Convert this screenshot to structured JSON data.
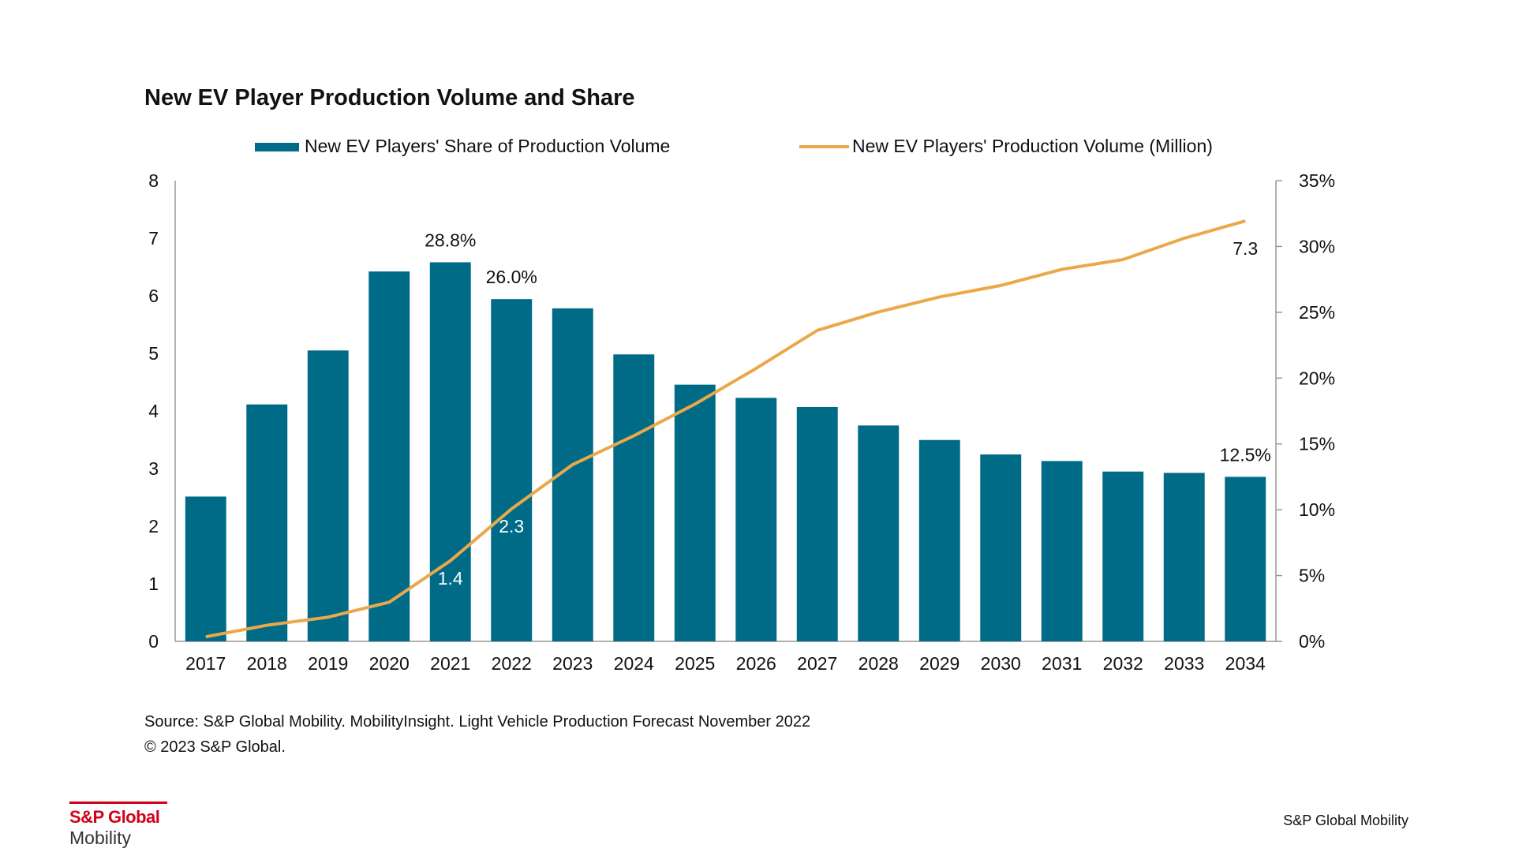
{
  "chart_data": {
    "type": "bar",
    "title": "New EV Player Production Volume and Share",
    "categories": [
      "2017",
      "2018",
      "2019",
      "2020",
      "2021",
      "2022",
      "2023",
      "2024",
      "2025",
      "2026",
      "2027",
      "2028",
      "2029",
      "2030",
      "2031",
      "2032",
      "2033",
      "2034"
    ],
    "series": [
      {
        "name": "New EV Players' Share of Production Volume",
        "type": "bar",
        "axis": "right",
        "values": [
          11.0,
          18.0,
          22.1,
          28.1,
          28.8,
          26.0,
          25.3,
          21.8,
          19.5,
          18.5,
          17.8,
          16.4,
          15.3,
          14.2,
          13.7,
          12.9,
          12.8,
          12.5
        ]
      },
      {
        "name": "New EV Players' Production Volume (Million)",
        "type": "line",
        "axis": "left",
        "values": [
          0.08,
          0.28,
          0.42,
          0.68,
          1.4,
          2.3,
          3.07,
          3.57,
          4.12,
          4.74,
          5.4,
          5.72,
          5.98,
          6.18,
          6.46,
          6.63,
          7.0,
          7.3
        ]
      }
    ],
    "data_labels": [
      {
        "series": 0,
        "index": 4,
        "text": "28.8%"
      },
      {
        "series": 0,
        "index": 5,
        "text": "26.0%"
      },
      {
        "series": 0,
        "index": 17,
        "text": "12.5%"
      },
      {
        "series": 1,
        "index": 4,
        "text": "1.4"
      },
      {
        "series": 1,
        "index": 5,
        "text": "2.3"
      },
      {
        "series": 1,
        "index": 17,
        "text": "7.3"
      }
    ],
    "y_left": {
      "ylim": [
        0,
        8
      ],
      "ticks": [
        "0",
        "1",
        "2",
        "3",
        "4",
        "5",
        "6",
        "7",
        "8"
      ]
    },
    "y_right": {
      "ylim": [
        0,
        35
      ],
      "ticks": [
        "0%",
        "5%",
        "10%",
        "15%",
        "20%",
        "25%",
        "30%",
        "35%"
      ]
    },
    "legend_position": "top",
    "grid": false,
    "colors": {
      "bar": "#006b87",
      "line": "#eba84a",
      "axis": "#999999"
    }
  },
  "footer": {
    "source": "Source: S&P Global Mobility. MobilityInsight. Light Vehicle Production Forecast November 2022",
    "copyright": "© 2023 S&P Global.",
    "brand": "S&P Global Mobility"
  },
  "logo": {
    "top": "S&P Global",
    "bottom": "Mobility"
  }
}
